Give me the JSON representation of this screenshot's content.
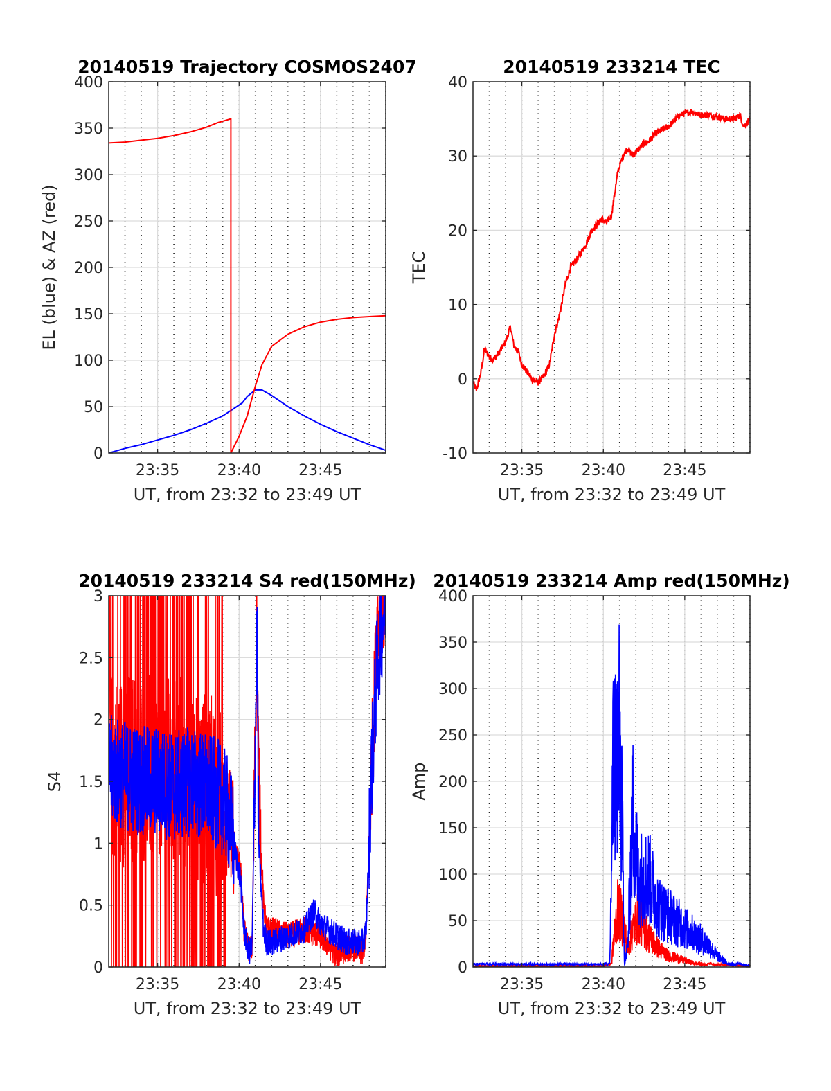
{
  "colors": {
    "red": "#ff0000",
    "blue": "#0000ff",
    "grid": "#dcdcdc",
    "axis": "#262626"
  },
  "chart_data": [
    {
      "type": "line",
      "title": "20140519 Trajectory COSMOS2407",
      "xlabel": "UT, from 23:32 to 23:49 UT",
      "ylabel": "EL (blue) & AZ (red)",
      "xlim": [
        23.5333,
        23.8167
      ],
      "ylim": [
        0,
        400
      ],
      "xticks": [
        {
          "v": 23.5833,
          "label": "23:35"
        },
        {
          "v": 23.6667,
          "label": "23:40"
        },
        {
          "v": 23.75,
          "label": "23:45"
        }
      ],
      "yticks": [
        0,
        50,
        100,
        150,
        200,
        250,
        300,
        350,
        400
      ],
      "grid": "major solid + minor dotted x",
      "series": [
        {
          "color": "blue",
          "x": [
            23.5333,
            23.55,
            23.5667,
            23.5833,
            23.6,
            23.6167,
            23.6333,
            23.65,
            23.66,
            23.67,
            23.675,
            23.6833,
            23.69,
            23.7,
            23.7167,
            23.7333,
            23.75,
            23.7667,
            23.7833,
            23.8,
            23.8167
          ],
          "y": [
            0,
            5,
            9,
            14,
            19,
            25,
            32,
            40,
            47,
            54,
            61,
            68,
            68,
            62,
            50,
            40,
            31,
            23,
            16,
            9,
            3
          ]
        },
        {
          "color": "red",
          "x": [
            23.5333,
            23.55,
            23.5667,
            23.5833,
            23.6,
            23.6167,
            23.6333,
            23.645,
            23.6583,
            23.6583,
            23.6667,
            23.675,
            23.6833,
            23.69,
            23.7,
            23.7167,
            23.7333,
            23.75,
            23.7667,
            23.7833,
            23.8,
            23.8167
          ],
          "y": [
            334,
            335,
            337,
            339,
            342,
            346,
            351,
            356,
            360,
            0,
            18,
            40,
            72,
            95,
            115,
            128,
            136,
            141,
            144,
            146,
            147,
            148
          ]
        }
      ]
    },
    {
      "type": "line",
      "title": "20140519 233214 TEC",
      "xlabel": "UT, from 23:32 to 23:49 UT",
      "ylabel": "TEC",
      "xlim": [
        23.5333,
        23.8167
      ],
      "ylim": [
        -10,
        40
      ],
      "xticks": [
        {
          "v": 23.5833,
          "label": "23:35"
        },
        {
          "v": 23.6667,
          "label": "23:40"
        },
        {
          "v": 23.75,
          "label": "23:45"
        }
      ],
      "yticks": [
        -10,
        0,
        10,
        20,
        30,
        40
      ],
      "grid": "major solid + minor dotted x",
      "series": [
        {
          "color": "red",
          "x": [
            23.5333,
            23.5367,
            23.5417,
            23.545,
            23.55,
            23.5533,
            23.56,
            23.5667,
            23.5717,
            23.575,
            23.58,
            23.5833,
            23.5883,
            23.5933,
            23.6,
            23.6067,
            23.6117,
            23.6167,
            23.6217,
            23.6283,
            23.6333,
            23.6417,
            23.6483,
            23.655,
            23.6617,
            23.665,
            23.67,
            23.675,
            23.6817,
            23.6883,
            23.6917,
            23.6967,
            23.7,
            23.7067,
            23.7133,
            23.72,
            23.7333,
            23.745,
            23.7567,
            23.7667,
            23.7767,
            23.79,
            23.8,
            23.8067,
            23.81,
            23.8167
          ],
          "y": [
            -0.5,
            -1.5,
            1,
            4,
            3,
            2.5,
            3.5,
            5,
            7,
            4.5,
            3.5,
            2,
            1,
            0,
            -0.5,
            0.5,
            2,
            6,
            8.5,
            13,
            15,
            16.5,
            18,
            20,
            21,
            21.5,
            21,
            22,
            28,
            30.5,
            31,
            30,
            30.5,
            31.5,
            32,
            33,
            34,
            35.5,
            36,
            35.5,
            35.5,
            35,
            35,
            35.5,
            34,
            35
          ]
        }
      ]
    },
    {
      "type": "line",
      "title": "20140519 233214 S4 red(150MHz)",
      "xlabel": "UT, from 23:32 to 23:49 UT",
      "ylabel": "S4",
      "xlim": [
        23.5333,
        23.8167
      ],
      "ylim": [
        0,
        3
      ],
      "xticks": [
        {
          "v": 23.5833,
          "label": "23:35"
        },
        {
          "v": 23.6667,
          "label": "23:40"
        },
        {
          "v": 23.75,
          "label": "23:45"
        }
      ],
      "yticks": [
        0,
        0.5,
        1,
        1.5,
        2,
        2.5,
        3
      ],
      "grid": "major solid + minor dotted x",
      "series": [
        {
          "color": "red",
          "noisy": true,
          "pattern": "spikes",
          "x": [
            23.5333,
            23.6067,
            23.62,
            23.64,
            23.6533,
            23.66,
            23.6633,
            23.6683,
            23.6717,
            23.6767,
            23.68,
            23.685,
            23.6867,
            23.6917,
            23.695,
            23.7,
            23.7167,
            23.7333,
            23.75,
            23.7667,
            23.7767,
            23.7867,
            23.7933,
            23.7967,
            23.8017,
            23.8083,
            23.8167
          ],
          "y": [
            1.6,
            1.6,
            1.5,
            1.4,
            1.2,
            1.1,
            0.9,
            0.8,
            0.3,
            0.15,
            0.15,
            2.8,
            1.5,
            0.5,
            0.3,
            0.3,
            0.25,
            0.3,
            0.25,
            0.1,
            0.15,
            0.15,
            0.1,
            0.3,
            1.5,
            2.8,
            3
          ]
        },
        {
          "color": "blue",
          "noisy": true,
          "pattern": "band",
          "x": [
            23.5333,
            23.55,
            23.5667,
            23.5833,
            23.6,
            23.6167,
            23.6333,
            23.645,
            23.6533,
            23.66,
            23.6633,
            23.6683,
            23.6717,
            23.6767,
            23.68,
            23.685,
            23.6867,
            23.6917,
            23.695,
            23.7,
            23.7167,
            23.7333,
            23.7433,
            23.75,
            23.7667,
            23.7767,
            23.7867,
            23.7933,
            23.7967,
            23.8017,
            23.8083,
            23.8167
          ],
          "y": [
            1.6,
            1.55,
            1.5,
            1.5,
            1.45,
            1.5,
            1.45,
            1.4,
            1.3,
            1.1,
            0.9,
            0.7,
            0.3,
            0.12,
            0.15,
            2.7,
            1.0,
            0.3,
            0.2,
            0.2,
            0.25,
            0.3,
            0.45,
            0.35,
            0.25,
            0.2,
            0.2,
            0.2,
            0.3,
            1.5,
            2.5,
            3
          ]
        }
      ]
    },
    {
      "type": "line",
      "title": "20140519 233214 Amp red(150MHz)",
      "xlabel": "UT, from 23:32 to 23:49 UT",
      "ylabel": "Amp",
      "xlim": [
        23.5333,
        23.8167
      ],
      "ylim": [
        0,
        400
      ],
      "xticks": [
        {
          "v": 23.5833,
          "label": "23:35"
        },
        {
          "v": 23.6667,
          "label": "23:40"
        },
        {
          "v": 23.75,
          "label": "23:45"
        }
      ],
      "yticks": [
        0,
        50,
        100,
        150,
        200,
        250,
        300,
        350,
        400
      ],
      "grid": "major solid + minor dotted x",
      "series": [
        {
          "color": "red",
          "noisy": true,
          "pattern": "band",
          "x": [
            23.5333,
            23.6667,
            23.6667,
            23.675,
            23.6767,
            23.6817,
            23.6867,
            23.6917,
            23.6967,
            23.7033,
            23.7133,
            23.7233,
            23.7333,
            23.7467,
            23.76,
            23.78,
            23.8167
          ],
          "y": [
            0,
            0,
            0,
            3,
            30,
            80,
            60,
            25,
            50,
            70,
            40,
            25,
            15,
            10,
            5,
            2,
            0
          ]
        },
        {
          "color": "blue",
          "noisy": true,
          "pattern": "band",
          "x": [
            23.5333,
            23.6667,
            23.6667,
            23.6733,
            23.6767,
            23.68,
            23.6833,
            23.6867,
            23.6883,
            23.6917,
            23.6967,
            23.7,
            23.7033,
            23.7133,
            23.7233,
            23.7333,
            23.7433,
            23.7533,
            23.7633,
            23.7733,
            23.7833,
            23.7933,
            23.8167
          ],
          "y": [
            2,
            2,
            2,
            4,
            270,
            280,
            300,
            150,
            0,
            30,
            210,
            150,
            120,
            120,
            80,
            70,
            60,
            50,
            40,
            30,
            15,
            5,
            0
          ]
        }
      ]
    }
  ]
}
